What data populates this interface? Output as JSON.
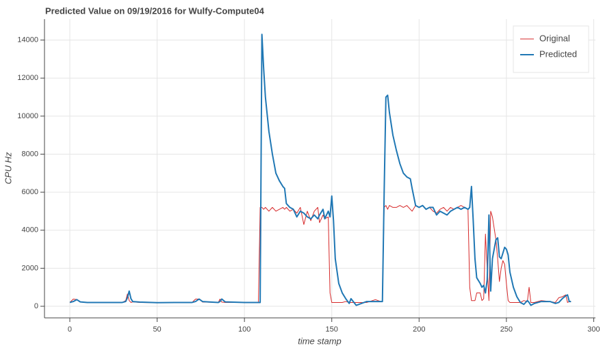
{
  "chart_data": {
    "type": "line",
    "title": "Predicted Value on 09/19/2016 for Wulfy-Compute04",
    "x_label": "time stamp",
    "y_label": "CPU Hz",
    "x": [
      0,
      2,
      4,
      6,
      10,
      20,
      30,
      32,
      33,
      34,
      35,
      36,
      40,
      50,
      60,
      70,
      72,
      74,
      76,
      85,
      86,
      87,
      89,
      100,
      108,
      109,
      110,
      111,
      112,
      114,
      116,
      118,
      120,
      122,
      123,
      124,
      126,
      128,
      130,
      132,
      134,
      136,
      138,
      140,
      142,
      143,
      145,
      146,
      148,
      149,
      150,
      151,
      152,
      154,
      156,
      158,
      160,
      161,
      164,
      170,
      175,
      178,
      179,
      180,
      181,
      182,
      183,
      185,
      187,
      189,
      191,
      193,
      195,
      196,
      198,
      200,
      202,
      204,
      206,
      208,
      210,
      212,
      214,
      216,
      218,
      220,
      222,
      224,
      226,
      228,
      229,
      230,
      231,
      232,
      233,
      235,
      236,
      237,
      238,
      239,
      240,
      241,
      242,
      244,
      245,
      246,
      247,
      248,
      249,
      250,
      251,
      252,
      254,
      256,
      258,
      260,
      262,
      263,
      264,
      266,
      270,
      275,
      278,
      280,
      282,
      284,
      285,
      286,
      287
    ],
    "series": [
      {
        "name": "Original",
        "color": "#d62728",
        "width": 1,
        "values": [
          200,
          380,
          350,
          220,
          200,
          210,
          200,
          300,
          650,
          300,
          200,
          230,
          200,
          190,
          200,
          200,
          380,
          380,
          220,
          200,
          380,
          220,
          200,
          200,
          200,
          5200,
          5200,
          5100,
          5200,
          5000,
          5200,
          5000,
          5100,
          5200,
          5100,
          5200,
          5000,
          5100,
          4900,
          5200,
          4300,
          5000,
          4500,
          5000,
          5200,
          4400,
          4800,
          4600,
          4700,
          700,
          200,
          200,
          200,
          200,
          200,
          250,
          200,
          200,
          200,
          200,
          350,
          250,
          250,
          5200,
          5300,
          5100,
          5300,
          5200,
          5200,
          5300,
          5200,
          5300,
          5100,
          5000,
          5300,
          5200,
          5300,
          5100,
          5200,
          5000,
          4900,
          5100,
          5200,
          5000,
          5200,
          5100,
          5200,
          5300,
          5200,
          5100,
          1000,
          300,
          300,
          300,
          700,
          700,
          300,
          400,
          3800,
          2000,
          300,
          5000,
          4700,
          3500,
          2500,
          1300,
          2000,
          2400,
          2200,
          1200,
          300,
          200,
          200,
          200,
          200,
          300,
          250,
          1000,
          200,
          200,
          300,
          250,
          200,
          450,
          500,
          600,
          200,
          250,
          250
        ]
      },
      {
        "name": "Predicted",
        "color": "#1f77b4",
        "width": 2,
        "values": [
          200,
          250,
          350,
          230,
          200,
          200,
          200,
          250,
          450,
          800,
          400,
          250,
          220,
          190,
          200,
          200,
          250,
          380,
          250,
          200,
          250,
          380,
          230,
          200,
          200,
          200,
          14300,
          12500,
          11000,
          9200,
          8000,
          7000,
          6600,
          6300,
          6200,
          5400,
          5200,
          5100,
          4700,
          5000,
          4900,
          4700,
          4600,
          4800,
          4600,
          4800,
          5100,
          4600,
          5000,
          4700,
          5800,
          4500,
          2500,
          1200,
          700,
          400,
          150,
          400,
          50,
          250,
          250,
          250,
          250,
          6000,
          11000,
          11100,
          10200,
          9000,
          8200,
          7500,
          7000,
          6800,
          6700,
          6200,
          5300,
          5200,
          5300,
          5100,
          5200,
          5200,
          4800,
          5000,
          4900,
          4800,
          5000,
          5100,
          5200,
          5100,
          5200,
          5100,
          5200,
          6300,
          4500,
          2500,
          1500,
          1200,
          1000,
          1100,
          700,
          1400,
          4800,
          800,
          2500,
          3500,
          3600,
          2600,
          2500,
          2800,
          3100,
          3000,
          2700,
          1800,
          1000,
          500,
          200,
          100,
          300,
          200,
          50,
          150,
          250,
          250,
          150,
          200,
          400,
          550,
          600,
          250,
          250
        ]
      }
    ],
    "xlim": [
      -14.5,
      301
    ],
    "ylim": [
      -610,
      15100
    ],
    "xticks": [
      0,
      50,
      100,
      150,
      200,
      250,
      300
    ],
    "yticks": [
      0,
      2000,
      4000,
      6000,
      8000,
      10000,
      12000,
      14000
    ],
    "grid": true,
    "legend": "top_right"
  }
}
